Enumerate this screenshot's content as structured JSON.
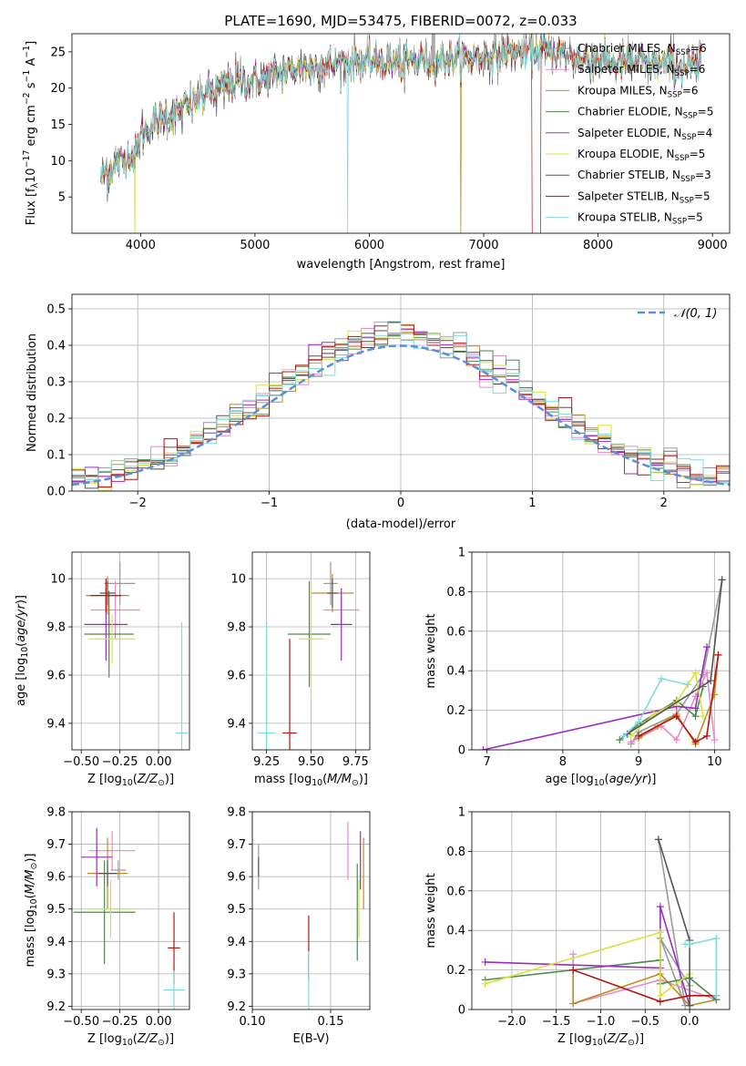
{
  "figure": {
    "title": "PLATE=1690, MJD=53475, FIBERID=0072, z=0.033"
  },
  "colors": {
    "grid": "#b0b0b0",
    "normal_curve": "#5b8fdb",
    "models": [
      "#9a9a9a",
      "#e88ac4",
      "#c48a22",
      "#4d8a4d",
      "#9b2bc0",
      "#d8e23c",
      "#555555",
      "#b31515",
      "#7fdcdc"
    ]
  },
  "chart_data": [
    {
      "id": "spectrum",
      "type": "line",
      "title": "PLATE=1690, MJD=53475, FIBERID=0072, z=0.033",
      "xlabel": "wavelength [Angstrom, rest frame]",
      "ylabel": "Flux [f_λ10^{-17} erg cm^{-2} s^{-1} A^{-1}]",
      "xlim": [
        3400,
        9150
      ],
      "ylim": [
        0,
        27.5
      ],
      "xticks": [
        4000,
        5000,
        6000,
        7000,
        8000,
        9000
      ],
      "yticks": [
        5,
        10,
        15,
        20,
        25
      ],
      "grid": false,
      "legend_position": "upper right",
      "continuum": {
        "x": [
          3650,
          3700,
          3800,
          3900,
          3950,
          4000,
          4100,
          4200,
          4300,
          4400,
          4500,
          4600,
          4800,
          5000,
          5200,
          5400,
          5600,
          5800,
          6000,
          6200,
          6400,
          6600,
          6800,
          7000,
          7200,
          7400,
          7600,
          7800,
          8000,
          8200,
          8400,
          8600,
          8800
        ],
        "y": [
          7.5,
          8.5,
          9.5,
          11.0,
          10.5,
          13.5,
          15.0,
          16.0,
          16.5,
          17.5,
          18.5,
          19.5,
          20.5,
          21.0,
          22.0,
          22.8,
          23.2,
          23.6,
          23.8,
          23.5,
          23.7,
          24.0,
          24.2,
          24.5,
          24.8,
          25.0,
          25.0,
          24.0,
          23.8,
          23.5,
          23.4,
          23.2,
          23.0
        ]
      },
      "dropouts": [
        5810,
        6800,
        7420
      ],
      "series": [
        {
          "name": "Chabrier MILES, N_{SSP}=6"
        },
        {
          "name": "Salpeter MILES, N_{SSP}=6"
        },
        {
          "name": "Kroupa MILES, N_{SSP}=6"
        },
        {
          "name": "Chabrier ELODIE, N_{SSP}=5"
        },
        {
          "name": "Salpeter ELODIE, N_{SSP}=4"
        },
        {
          "name": "Kroupa ELODIE, N_{SSP}=5"
        },
        {
          "name": "Chabrier STELIB, N_{SSP}=3"
        },
        {
          "name": "Salpeter STELIB, N_{SSP}=5"
        },
        {
          "name": "Kroupa STELIB, N_{SSP}=5"
        }
      ]
    },
    {
      "id": "residuals",
      "type": "step",
      "xlabel": "(data-model)/error",
      "ylabel": "Normed distribution",
      "xlim": [
        -2.5,
        2.5
      ],
      "ylim": [
        0,
        0.54
      ],
      "xticks": [
        -2,
        -1,
        0,
        1,
        2
      ],
      "xtick_labels": [
        "−2",
        "−1",
        "0",
        "1",
        "2"
      ],
      "yticks": [
        0.0,
        0.1,
        0.2,
        0.3,
        0.4,
        0.5
      ],
      "ytick_labels": [
        "0.0",
        "0.1",
        "0.2",
        "0.3",
        "0.4",
        "0.5"
      ],
      "grid": true,
      "legend_position": "upper right",
      "bin_width": 0.1,
      "normal_curve": {
        "name": "𝒩(0, 1)",
        "mu": 0,
        "sigma": 1
      }
    },
    {
      "id": "age_vs_Z",
      "type": "errorbar",
      "xlabel": "Z [log10(Z/Z⊙)]",
      "ylabel": "age  [log10(age/yr)]",
      "xlim": [
        -0.56,
        0.2
      ],
      "ylim": [
        9.29,
        10.11
      ],
      "xticks": [
        -0.5,
        -0.25,
        0.0
      ],
      "xtick_labels": [
        "−0.50",
        "−0.25",
        "0.00"
      ],
      "yticks": [
        9.4,
        9.6,
        9.8,
        10.0
      ],
      "grid": true,
      "points": [
        {
          "x": -0.25,
          "y": 9.98,
          "xerr": 0.1,
          "yerr": 0.09
        },
        {
          "x": -0.28,
          "y": 9.87,
          "xerr": 0.16,
          "yerr": 0.12
        },
        {
          "x": -0.33,
          "y": 9.93,
          "xerr": 0.14,
          "yerr": 0.08
        },
        {
          "x": -0.32,
          "y": 9.77,
          "xerr": 0.16,
          "yerr": 0.18
        },
        {
          "x": -0.34,
          "y": 9.81,
          "xerr": 0.14,
          "yerr": 0.15
        },
        {
          "x": -0.3,
          "y": 9.75,
          "xerr": 0.15,
          "yerr": 0.1
        },
        {
          "x": -0.33,
          "y": 9.94,
          "xerr": 0.05,
          "yerr": 0.05
        },
        {
          "x": -0.34,
          "y": 9.93,
          "xerr": 0.1,
          "yerr": 0.07
        },
        {
          "x": 0.15,
          "y": 9.36,
          "xerr": 0.04,
          "yerr": 0.46
        }
      ]
    },
    {
      "id": "age_vs_mass",
      "type": "errorbar",
      "xlabel": "mass [log10(M/M⊙)]",
      "ylabel": "",
      "xlim": [
        9.17,
        9.83
      ],
      "ylim": [
        9.29,
        10.11
      ],
      "xticks": [
        9.25,
        9.5,
        9.75
      ],
      "xtick_labels": [
        "9.25",
        "9.50",
        "9.75"
      ],
      "yticks": [
        9.4,
        9.6,
        9.8,
        10.0
      ],
      "grid": true,
      "points": [
        {
          "x": 9.61,
          "y": 9.98,
          "xerr": 0.04,
          "yerr": 0.09
        },
        {
          "x": 9.67,
          "y": 9.87,
          "xerr": 0.1,
          "yerr": 0.06
        },
        {
          "x": 9.62,
          "y": 9.94,
          "xerr": 0.12,
          "yerr": 0.08
        },
        {
          "x": 9.49,
          "y": 9.77,
          "xerr": 0.12,
          "yerr": 0.22
        },
        {
          "x": 9.67,
          "y": 9.81,
          "xerr": 0.06,
          "yerr": 0.15
        },
        {
          "x": 9.5,
          "y": 9.75,
          "xerr": 0.07,
          "yerr": 0.25
        },
        {
          "x": 9.62,
          "y": 9.94,
          "xerr": 0.03,
          "yerr": 0.06
        },
        {
          "x": 9.38,
          "y": 9.36,
          "xerr": 0.04,
          "yerr": 0.39
        },
        {
          "x": 9.25,
          "y": 9.36,
          "xerr": 0.05,
          "yerr": 0.46
        }
      ]
    },
    {
      "id": "weight_vs_age",
      "type": "line",
      "xlabel": "age  [log10(age/yr)]",
      "ylabel": "mass weight",
      "xlim": [
        6.8,
        10.2
      ],
      "ylim": [
        0,
        1.0
      ],
      "xticks": [
        7,
        8,
        9,
        10
      ],
      "yticks": [
        0.0,
        0.2,
        0.4,
        0.6,
        0.8,
        1.0
      ],
      "grid": true,
      "series": [
        {
          "ages": [
            8.9,
            9.0,
            9.5,
            9.85,
            10.1
          ],
          "weights": [
            0.03,
            0.09,
            0.18,
            0.38,
            0.86
          ]
        },
        {
          "ages": [
            8.9,
            9.3,
            9.5,
            9.75,
            9.9,
            10.0
          ],
          "weights": [
            0.04,
            0.12,
            0.05,
            0.27,
            0.39,
            0.05
          ]
        },
        {
          "ages": [
            9.0,
            9.25,
            9.5,
            9.75,
            10.0,
            10.05
          ],
          "weights": [
            0.06,
            0.12,
            0.18,
            0.03,
            0.28,
            0.48
          ]
        },
        {
          "ages": [
            8.75,
            9.0,
            9.5,
            9.75,
            9.85
          ],
          "weights": [
            0.05,
            0.13,
            0.25,
            0.17,
            0.32
          ]
        },
        {
          "ages": [
            6.95,
            9.5,
            9.75,
            9.9
          ],
          "weights": [
            0.0,
            0.22,
            0.21,
            0.52
          ]
        },
        {
          "ages": [
            8.9,
            9.2,
            9.5,
            9.75,
            9.85
          ],
          "weights": [
            0.07,
            0.18,
            0.24,
            0.39,
            0.17
          ]
        },
        {
          "ages": [
            8.85,
            9.95,
            10.1
          ],
          "weights": [
            0.08,
            0.35,
            0.86
          ]
        },
        {
          "ages": [
            9.0,
            9.5,
            9.75,
            9.9,
            10.05
          ],
          "weights": [
            0.07,
            0.17,
            0.04,
            0.07,
            0.48
          ]
        },
        {
          "ages": [
            8.8,
            9.0,
            9.3,
            9.65
          ],
          "weights": [
            0.07,
            0.14,
            0.36,
            0.33
          ]
        }
      ]
    },
    {
      "id": "mass_vs_Z",
      "type": "errorbar",
      "xlabel": "Z [log10(Z/Z⊙)]",
      "ylabel": "mass [log10(M/M⊙)]",
      "xlim": [
        -0.56,
        0.2
      ],
      "ylim": [
        9.19,
        9.8
      ],
      "xticks": [
        -0.5,
        -0.25,
        0.0
      ],
      "xtick_labels": [
        "−0.50",
        "−0.25",
        "0.00"
      ],
      "yticks": [
        9.2,
        9.3,
        9.4,
        9.5,
        9.6,
        9.7,
        9.8
      ],
      "grid": true,
      "points": [
        {
          "x": -0.26,
          "y": 9.62,
          "xerr": 0.05,
          "yerr": 0.03
        },
        {
          "x": -0.3,
          "y": 9.68,
          "xerr": 0.15,
          "yerr": 0.06
        },
        {
          "x": -0.33,
          "y": 9.61,
          "xerr": 0.13,
          "yerr": 0.11
        },
        {
          "x": -0.35,
          "y": 9.49,
          "xerr": 0.2,
          "yerr": 0.16
        },
        {
          "x": -0.4,
          "y": 9.66,
          "xerr": 0.1,
          "yerr": 0.09
        },
        {
          "x": -0.31,
          "y": 9.5,
          "xerr": 0.15,
          "yerr": 0.09
        },
        {
          "x": -0.33,
          "y": 9.61,
          "xerr": 0.06,
          "yerr": 0.04
        },
        {
          "x": 0.1,
          "y": 9.38,
          "xerr": 0.04,
          "yerr": 0.11
        },
        {
          "x": 0.1,
          "y": 9.25,
          "xerr": 0.07,
          "yerr": 0.06
        }
      ]
    },
    {
      "id": "mass_vs_EBV",
      "type": "errorbar",
      "xlabel": "E(B-V)",
      "ylabel": "",
      "xlim": [
        0.1,
        0.175
      ],
      "ylim": [
        9.19,
        9.8
      ],
      "xticks": [
        0.1,
        0.15
      ],
      "xtick_labels": [
        "0.10",
        "0.15"
      ],
      "yticks": [
        9.2,
        9.3,
        9.4,
        9.5,
        9.6,
        9.7,
        9.8
      ],
      "grid": true,
      "points": [
        {
          "x": 0.104,
          "y": 9.63,
          "yerr": 0.07
        },
        {
          "x": 0.161,
          "y": 9.68,
          "yerr": 0.09
        },
        {
          "x": 0.171,
          "y": 9.61,
          "yerr": 0.11
        },
        {
          "x": 0.167,
          "y": 9.49,
          "yerr": 0.15
        },
        {
          "x": 0.169,
          "y": 9.65,
          "yerr": 0.09
        },
        {
          "x": 0.168,
          "y": 9.5,
          "yerr": 0.09
        },
        {
          "x": 0.104,
          "y": 9.63,
          "yerr": 0.03
        },
        {
          "x": 0.136,
          "y": 9.38,
          "yerr": 0.1
        },
        {
          "x": 0.136,
          "y": 9.25,
          "yerr": 0.12
        }
      ]
    },
    {
      "id": "weight_vs_Z",
      "type": "line",
      "xlabel": "Z [log10(Z/Z⊙)]",
      "ylabel": "mass weight",
      "xlim": [
        -2.45,
        0.45
      ],
      "ylim": [
        0,
        1.0
      ],
      "xticks": [
        -2.0,
        -1.5,
        -1.0,
        -0.5,
        0.0
      ],
      "xtick_labels": [
        "−2.0",
        "−1.5",
        "−1.0",
        "−0.5",
        "0.0"
      ],
      "yticks": [
        0.0,
        0.2,
        0.4,
        0.6,
        0.8,
        1.0
      ],
      "grid": true,
      "series": [
        {
          "Z": [
            -0.35,
            -0.05,
            -0.33,
            0.0
          ],
          "w": [
            0.86,
            0.02,
            0.36,
            0.12
          ]
        },
        {
          "Z": [
            -1.31,
            -1.31,
            -0.33,
            0.3
          ],
          "w": [
            0.28,
            0.03,
            0.15,
            0.05
          ]
        },
        {
          "Z": [
            -1.31,
            -1.31,
            -0.33,
            0.0,
            0.3
          ],
          "w": [
            0.2,
            0.03,
            0.18,
            0.02,
            0.05
          ]
        },
        {
          "Z": [
            -2.3,
            -0.33,
            -0.33,
            0.0,
            0.3
          ],
          "w": [
            0.15,
            0.25,
            0.13,
            0.16,
            0.05
          ]
        },
        {
          "Z": [
            -2.3,
            -0.33,
            -0.33,
            0.0
          ],
          "w": [
            0.24,
            0.21,
            0.52,
            0.02
          ]
        },
        {
          "Z": [
            -2.3,
            -0.33,
            -0.33,
            0.0
          ],
          "w": [
            0.13,
            0.39,
            0.07,
            0.18
          ]
        },
        {
          "Z": [
            -0.35,
            0.0,
            0.0
          ],
          "w": [
            0.86,
            0.35,
            0.02
          ]
        },
        {
          "Z": [
            -1.31,
            -0.33,
            0.0,
            0.3
          ],
          "w": [
            0.2,
            0.04,
            0.07,
            0.07
          ]
        },
        {
          "Z": [
            -0.05,
            0.0,
            0.3,
            0.3
          ],
          "w": [
            0.33,
            0.33,
            0.36,
            0.07
          ]
        }
      ]
    }
  ]
}
